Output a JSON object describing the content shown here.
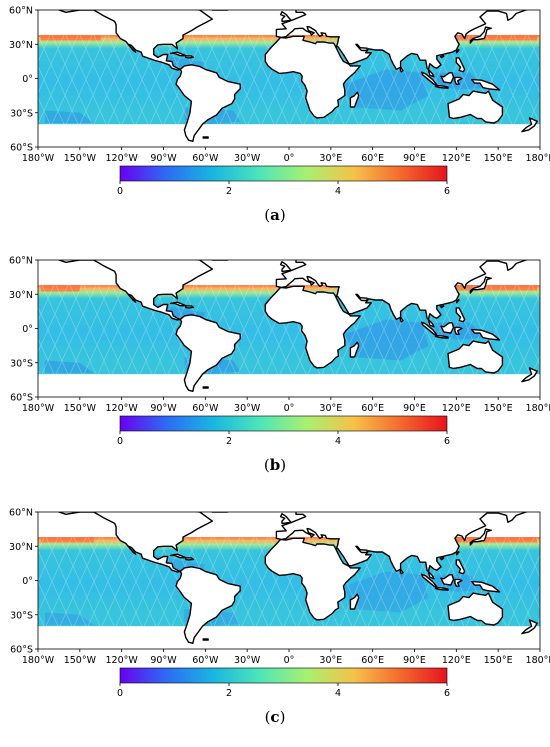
{
  "panels": [
    {
      "caption_letter": "a",
      "variant": 0
    },
    {
      "caption_letter": "b",
      "variant": 1
    },
    {
      "caption_letter": "c",
      "variant": 2
    }
  ],
  "lat_labels": [
    "60°N",
    "30°N",
    "0°",
    "30°S",
    "60°S"
  ],
  "lon_labels": [
    "180°W",
    "150°W",
    "120°W",
    "90°W",
    "60°W",
    "30°W",
    "0°",
    "30°E",
    "60°E",
    "90°E",
    "120°E",
    "150°E",
    "180°E"
  ],
  "colorbar": {
    "ticks": [
      "0",
      "2",
      "4",
      "6"
    ],
    "min": 0,
    "max": 6,
    "colors": [
      "#6a00f0",
      "#2c6cf4",
      "#19b7e0",
      "#4ee6b8",
      "#a8f070",
      "#f5c24a",
      "#f46a2e",
      "#e5141e"
    ]
  },
  "colors": {
    "ocean_base": "#37c4dc",
    "ocean_dark": "#2f8fe6",
    "high_band": "#ff6a3a",
    "land": "#ffffff",
    "coast": "#000000"
  }
}
